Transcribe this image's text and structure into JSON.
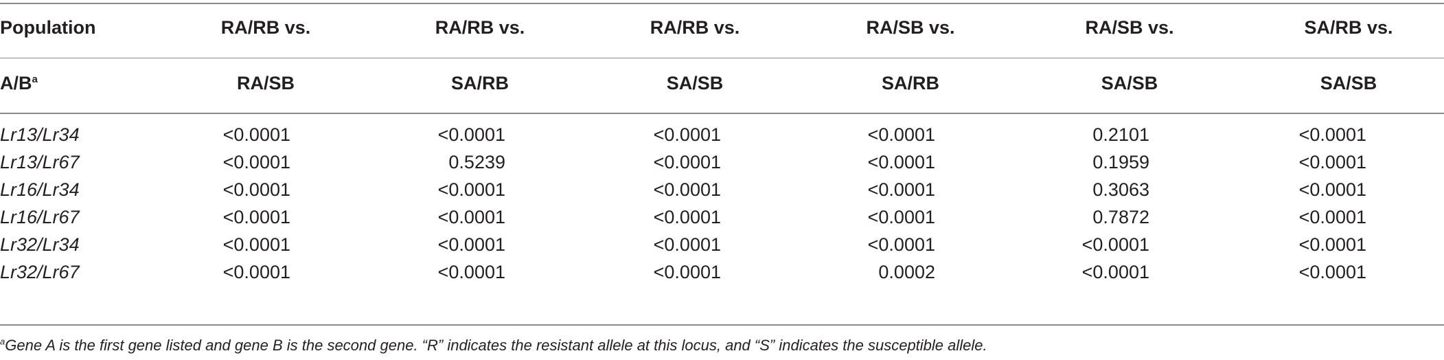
{
  "table": {
    "header_row1": [
      "Population",
      "RA/RB vs.",
      "RA/RB vs.",
      "RA/RB vs.",
      "RA/SB vs.",
      "RA/SB vs.",
      "SA/RB vs."
    ],
    "header_row2_first": "A/B",
    "header_row2_first_sup": "a",
    "header_row2": [
      "RA/SB",
      "SA/RB",
      "SA/SB",
      "SA/RB",
      "SA/SB",
      "SA/SB"
    ],
    "rows": [
      {
        "population": "Lr13/Lr34",
        "values": [
          "<0.0001",
          "<0.0001",
          "<0.0001",
          "<0.0001",
          "0.2101",
          "<0.0001"
        ]
      },
      {
        "population": "Lr13/Lr67",
        "values": [
          "<0.0001",
          "0.5239",
          "<0.0001",
          "<0.0001",
          "0.1959",
          "<0.0001"
        ]
      },
      {
        "population": "Lr16/Lr34",
        "values": [
          "<0.0001",
          "<0.0001",
          "<0.0001",
          "<0.0001",
          "0.3063",
          "<0.0001"
        ]
      },
      {
        "population": "Lr16/Lr67",
        "values": [
          "<0.0001",
          "<0.0001",
          "<0.0001",
          "<0.0001",
          "0.7872",
          "<0.0001"
        ]
      },
      {
        "population": "Lr32/Lr34",
        "values": [
          "<0.0001",
          "<0.0001",
          "<0.0001",
          "<0.0001",
          "<0.0001",
          "<0.0001"
        ]
      },
      {
        "population": "Lr32/Lr67",
        "values": [
          "<0.0001",
          "<0.0001",
          "<0.0001",
          "0.0002",
          "<0.0001",
          "<0.0001"
        ]
      }
    ]
  },
  "footnote": {
    "marker": "a",
    "text": "Gene A is the first gene listed and gene B is the second gene. “R” indicates the resistant allele at this locus, and “S” indicates the susceptible allele."
  }
}
